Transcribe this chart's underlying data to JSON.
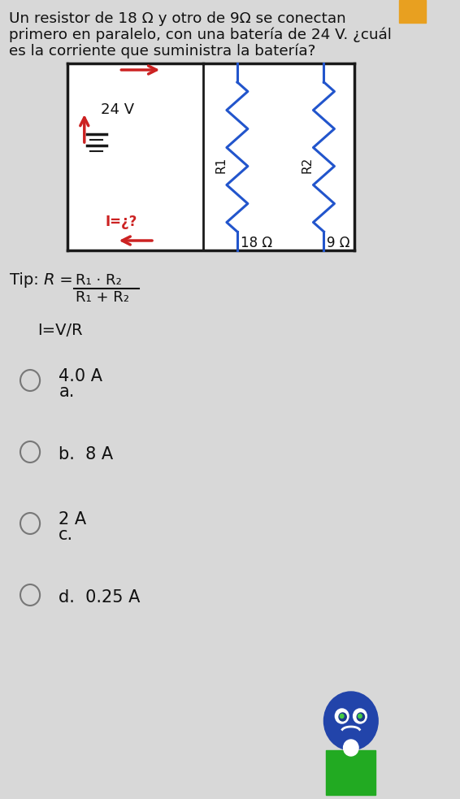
{
  "title_line1": "Un resistor de 18 Ω y otro de 9Ω se conectan",
  "title_line2": "primero en paralelo, con una batería de 24 V. ¿cuál",
  "title_line3": "es la corriente que suministra la batería?",
  "voltage": "24 V",
  "r1_label": "R1",
  "r1_value": "18 Ω",
  "r2_label": "R2",
  "r2_value": "9 Ω",
  "current_label": "I=¿?",
  "tip_text": "Tip: R = ",
  "tip_num": "R₁ · R₂",
  "tip_den": "R₁ + R₂",
  "tip_line2": "I=V/R",
  "options": [
    {
      "letter": "a.",
      "value": "4.0 A",
      "above": true
    },
    {
      "letter": "b.",
      "value": "8 A",
      "above": false
    },
    {
      "letter": "c.",
      "value": "2 A",
      "above": true
    },
    {
      "letter": "d.",
      "value": "0.25 A",
      "above": false
    }
  ],
  "bg_color": "#d8d8d8",
  "circuit_bg": "#ffffff",
  "wire_dark": "#1a1a1a",
  "wire_red": "#cc2222",
  "wire_blue": "#2255cc",
  "resistor_blue": "#2255cc",
  "text_color": "#111111",
  "circle_color": "#777777",
  "orange_corner": "#e8a020",
  "robot_head": "#2244aa",
  "robot_body": "#22aa22",
  "robot_white": "#ffffff"
}
